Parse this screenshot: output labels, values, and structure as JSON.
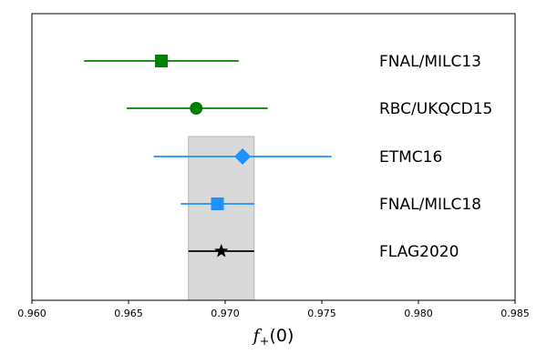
{
  "chart_data": {
    "type": "scatter",
    "xlabel": "f_+(0)",
    "xlabel_parts": {
      "main": "f",
      "subscript": "+",
      "rest": "(0)"
    },
    "xlim": [
      0.96,
      0.985
    ],
    "xticks": [
      "0.960",
      "0.965",
      "0.970",
      "0.975",
      "0.980",
      "0.985"
    ],
    "xtick_values": [
      0.96,
      0.965,
      0.97,
      0.975,
      0.98,
      0.985
    ],
    "grid": false,
    "band": {
      "low": 0.9681,
      "high": 0.9715,
      "color": "#d9d9d9"
    },
    "points": [
      {
        "name": "FNAL/MILC13",
        "value": 0.9667,
        "low": 0.9627,
        "high": 0.9707,
        "marker": "square",
        "color": "#008000"
      },
      {
        "name": "RBC/UKQCD15",
        "value": 0.9685,
        "low": 0.9649,
        "high": 0.9722,
        "marker": "circle",
        "color": "#008000"
      },
      {
        "name": "ETMC16",
        "value": 0.9709,
        "low": 0.9663,
        "high": 0.9755,
        "marker": "diamond",
        "color": "#1e90ff"
      },
      {
        "name": "FNAL/MILC18",
        "value": 0.9696,
        "low": 0.9677,
        "high": 0.9715,
        "marker": "square",
        "color": "#1e90ff"
      },
      {
        "name": "FLAG2020",
        "value": 0.9698,
        "low": 0.9681,
        "high": 0.9715,
        "marker": "star",
        "color": "#000000"
      }
    ]
  }
}
